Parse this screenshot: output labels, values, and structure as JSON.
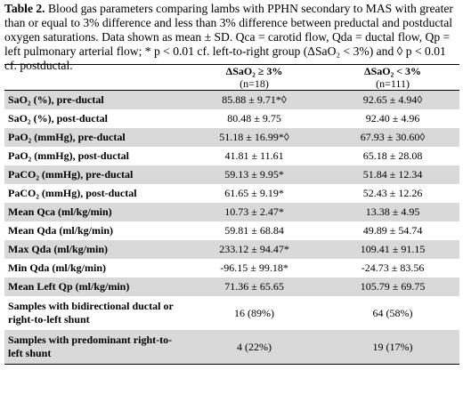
{
  "caption": {
    "label": "Table 2.",
    "text": " Blood gas parameters comparing lambs with PPHN secondary to MAS with greater than or equal to 3% difference and less than 3% difference between preductal and postductal oxygen saturations. Data shown as mean ± SD. Qca = carotid flow, Qda = ductal flow, Qp = left pulmonary arterial flow; * p < 0.01 cf. left-to-right group (ΔSaO₂ < 3%) and ◊ p < 0.01 cf. postductal."
  },
  "columns": [
    {
      "label": "",
      "n": ""
    },
    {
      "label": "ΔSaO₂ ≥ 3%",
      "n": "(n=18)"
    },
    {
      "label": "ΔSaO₂ < 3%",
      "n": "(n=111)"
    }
  ],
  "rows": [
    {
      "label": "SaO₂ (%), pre-ductal",
      "a": "85.88 ± 9.71*◊",
      "b": "92.65 ± 4.94◊",
      "shade": true
    },
    {
      "label": "SaO₂ (%), post-ductal",
      "a": "80.48 ± 9.75",
      "b": "92.40 ± 4.96",
      "shade": false
    },
    {
      "label": "PaO₂ (mmHg), pre-ductal",
      "a": "51.18 ± 16.99*◊",
      "b": "67.93 ± 30.60◊",
      "shade": true
    },
    {
      "label": "PaO₂ (mmHg), post-ductal",
      "a": "41.81 ± 11.61",
      "b": "65.18 ± 28.08",
      "shade": false
    },
    {
      "label": "PaCO₂ (mmHg), pre-ductal",
      "a": "59.13 ± 9.95*",
      "b": "51.84 ± 12.34",
      "shade": true
    },
    {
      "label": "PaCO₂ (mmHg), post-ductal",
      "a": "61.65 ± 9.19*",
      "b": "52.43 ± 12.26",
      "shade": false
    },
    {
      "label": "Mean Qca (ml/kg/min)",
      "a": "10.73 ± 2.47*",
      "b": "13.38 ± 4.95",
      "shade": true
    },
    {
      "label": "Mean Qda (ml/kg/min)",
      "a": "59.81 ± 68.84",
      "b": "49.89 ± 54.74",
      "shade": false
    },
    {
      "label": "Max Qda (ml/kg/min)",
      "a": "233.12 ± 94.47*",
      "b": "109.41 ± 91.15",
      "shade": true
    },
    {
      "label": "Min Qda (ml/kg/min)",
      "a": "-96.15 ± 99.18*",
      "b": "-24.73 ± 83.56",
      "shade": false
    },
    {
      "label": "Mean Left Qp (ml/kg/min)",
      "a": "71.36 ± 65.65",
      "b": "105.79 ± 69.75",
      "shade": true
    },
    {
      "label": "Samples with bidirectional ductal or right-to-left shunt",
      "a": "16 (89%)",
      "b": "64 (58%)",
      "shade": false,
      "tall": true
    },
    {
      "label": "Samples with predominant right-to-left shunt",
      "a": "4 (22%)",
      "b": "19 (17%)",
      "shade": true,
      "tall": true
    }
  ]
}
